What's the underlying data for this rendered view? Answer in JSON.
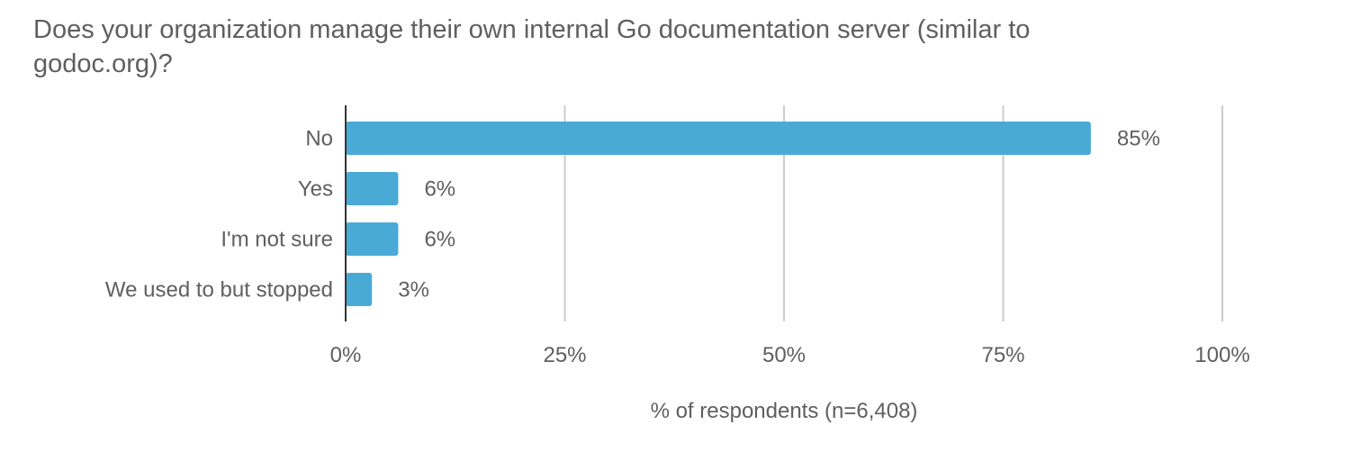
{
  "chart_data": {
    "type": "bar",
    "orientation": "horizontal",
    "title": "Does your organization manage their own internal Go documentation server (similar to godoc.org)?",
    "categories": [
      "No",
      "Yes",
      "I'm not sure",
      "We used to but stopped"
    ],
    "values": [
      85,
      6,
      6,
      3
    ],
    "value_labels": [
      "85%",
      "6%",
      "6%",
      "3%"
    ],
    "xlabel": "% of respondents (n=6,408)",
    "ylabel": "",
    "xlim": [
      0,
      100
    ],
    "x_ticks": [
      0,
      25,
      50,
      75,
      100
    ],
    "x_tick_labels": [
      "0%",
      "25%",
      "50%",
      "75%",
      "100%"
    ],
    "grid": true,
    "legend": "none",
    "bar_color": "#4aaad6",
    "grid_color": "#cccccc",
    "axis_color": "#333333",
    "text_color": "#5f5f5f"
  }
}
